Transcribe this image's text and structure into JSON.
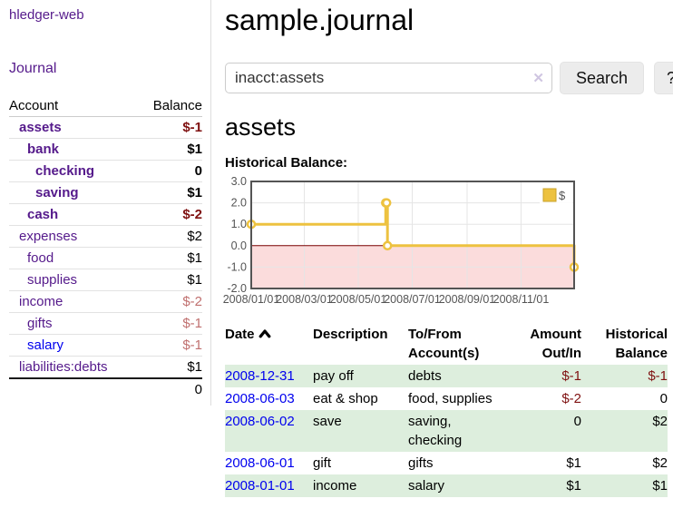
{
  "app": {
    "title": "hledger-web"
  },
  "sidebar": {
    "journal_link": "Journal",
    "accounts_table": {
      "header_account": "Account",
      "header_balance": "Balance",
      "rows": [
        {
          "name": "assets",
          "indent": 0,
          "bold": true,
          "balance": "$-1",
          "balance_tone": "strong-negative"
        },
        {
          "name": "bank",
          "indent": 1,
          "bold": true,
          "balance": "$1",
          "balance_tone": "normal"
        },
        {
          "name": "checking",
          "indent": 2,
          "bold": true,
          "balance": "0",
          "balance_tone": "normal"
        },
        {
          "name": "saving",
          "indent": 2,
          "bold": true,
          "balance": "$1",
          "balance_tone": "normal"
        },
        {
          "name": "cash",
          "indent": 1,
          "bold": true,
          "balance": "$-2",
          "balance_tone": "strong-negative"
        },
        {
          "name": "expenses",
          "indent": 0,
          "bold": false,
          "balance": "$2",
          "balance_tone": "normal"
        },
        {
          "name": "food",
          "indent": 1,
          "bold": false,
          "balance": "$1",
          "balance_tone": "normal"
        },
        {
          "name": "supplies",
          "indent": 1,
          "bold": false,
          "balance": "$1",
          "balance_tone": "normal"
        },
        {
          "name": "income",
          "indent": 0,
          "bold": false,
          "balance": "$-2",
          "balance_tone": "soft-negative"
        },
        {
          "name": "gifts",
          "indent": 1,
          "bold": false,
          "balance": "$-1",
          "balance_tone": "soft-negative"
        },
        {
          "name": "salary",
          "indent": 1,
          "bold": false,
          "balance": "$-1",
          "balance_tone": "soft-negative",
          "link_color": "blue"
        },
        {
          "name": "liabilities:debts",
          "indent": 0,
          "bold": false,
          "balance": "$1",
          "balance_tone": "normal"
        }
      ],
      "total": "0"
    }
  },
  "header": {
    "title": "sample.journal"
  },
  "search": {
    "query": "inacct:assets",
    "clear_icon": "✕",
    "search_button_label": "Search",
    "help_button_label": "?"
  },
  "account_page": {
    "title": "assets",
    "chart_label": "Historical Balance:"
  },
  "chart_data": {
    "type": "line",
    "step": true,
    "title": "Historical Balance:",
    "series": [
      {
        "name": "$",
        "color": "#edc240",
        "points": [
          [
            "2008-01-01",
            1
          ],
          [
            "2008-06-01",
            2
          ],
          [
            "2008-06-02",
            2
          ],
          [
            "2008-06-03",
            0
          ],
          [
            "2008-12-31",
            -1
          ]
        ]
      }
    ],
    "xlim": [
      "2008-01-01",
      "2008-12-31"
    ],
    "ylim": [
      -2,
      3
    ],
    "yticks": [
      3.0,
      2.0,
      1.0,
      0.0,
      -1.0,
      -2.0
    ],
    "xticks": [
      {
        "date": "2008-01-01",
        "label": "2008/01/01"
      },
      {
        "date": "2008-03-01",
        "label": "2008/03/01"
      },
      {
        "date": "2008-05-01",
        "label": "2008/05/01"
      },
      {
        "date": "2008-07-01",
        "label": "2008/07/01"
      },
      {
        "date": "2008-09-01",
        "label": "2008/09/01"
      },
      {
        "date": "2008-11-01",
        "label": "2008/11/01"
      }
    ],
    "legend": {
      "position": "top-right",
      "entries": [
        "$"
      ]
    },
    "grid": true,
    "negative_region_color": "#fbdcdc",
    "zero_line_color": "#7a0000",
    "axis_text_color": "#545454"
  },
  "transactions": {
    "headers": {
      "date": "Date",
      "description": "Description",
      "accounts": "To/From Account(s)",
      "amount": "Amount Out/In",
      "balance": "Historical Balance"
    },
    "rows": [
      {
        "date": "2008-12-31",
        "description": "pay off",
        "accounts": "debts",
        "amount": "$-1",
        "amount_negative": true,
        "balance": "$-1",
        "balance_negative": true
      },
      {
        "date": "2008-06-03",
        "description": "eat & shop",
        "accounts": "food, supplies",
        "amount": "$-2",
        "amount_negative": true,
        "balance": "0",
        "balance_negative": false
      },
      {
        "date": "2008-06-02",
        "description": "save",
        "accounts": "saving, checking",
        "amount": "0",
        "amount_negative": false,
        "balance": "$2",
        "balance_negative": false
      },
      {
        "date": "2008-06-01",
        "description": "gift",
        "accounts": "gifts",
        "amount": "$1",
        "amount_negative": false,
        "balance": "$2",
        "balance_negative": false
      },
      {
        "date": "2008-01-01",
        "description": "income",
        "accounts": "salary",
        "amount": "$1",
        "amount_negative": false,
        "balance": "$1",
        "balance_negative": false
      }
    ]
  },
  "colors": {
    "link_purple": "#551a8b",
    "link_blue": "#0000ee",
    "negative_strong": "#7f1111",
    "negative_soft": "#c0706f",
    "row_stripe_green": "#ddeedd",
    "chart_line_gold": "#edc240"
  }
}
